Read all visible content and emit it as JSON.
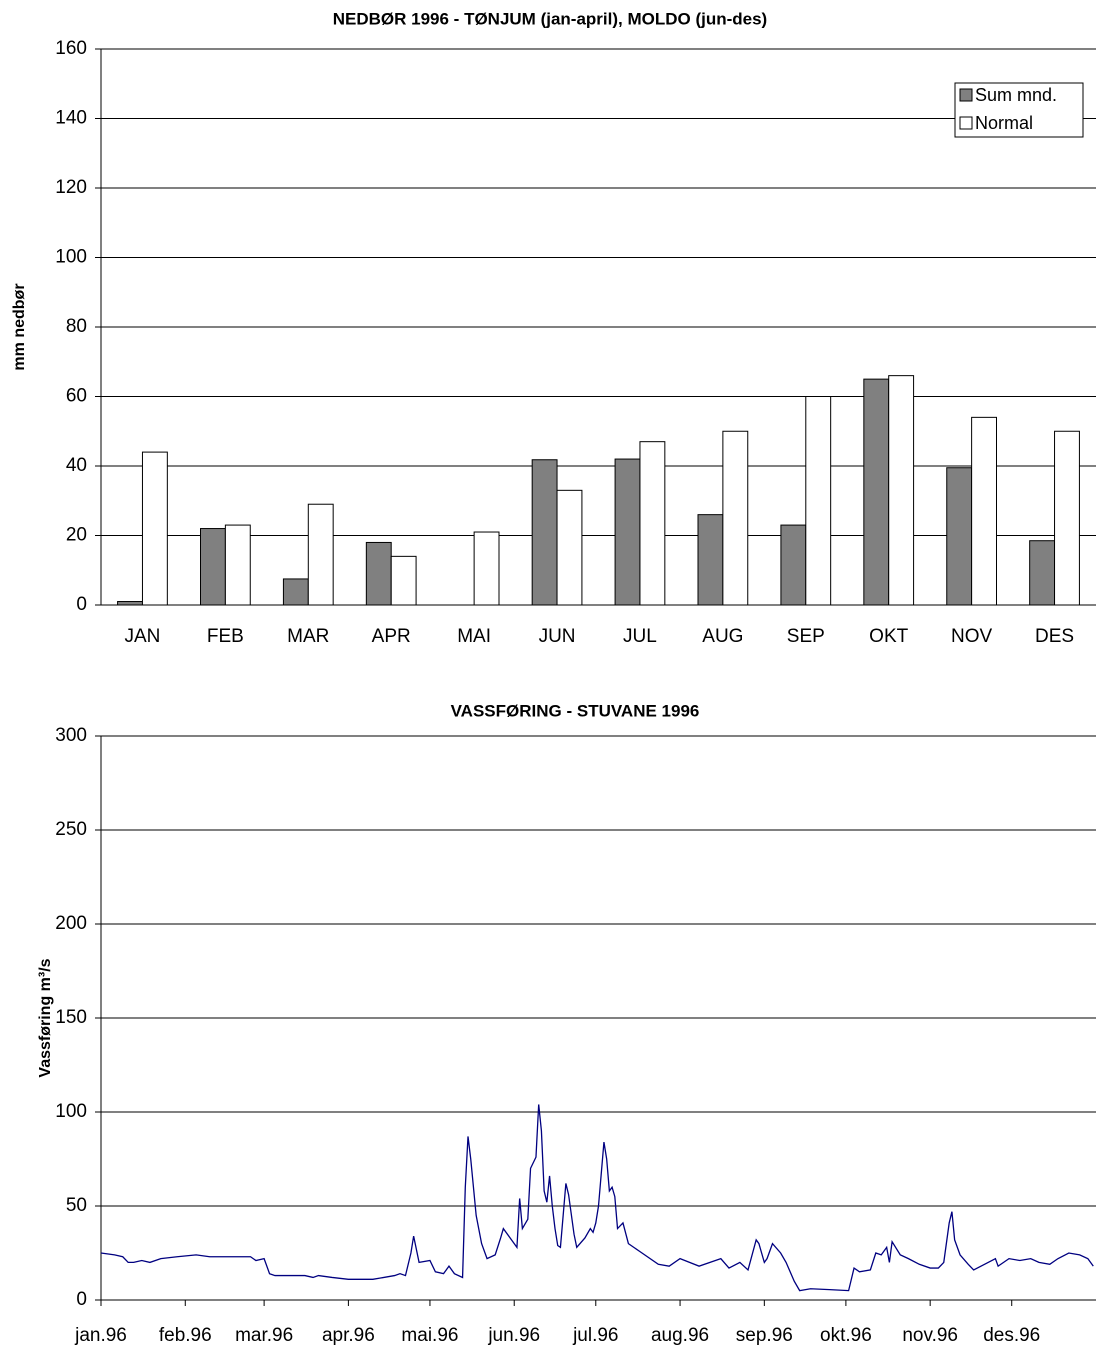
{
  "chart_data": [
    {
      "type": "bar",
      "title": "NEDBØR 1996 - TØNJUM (jan-april), MOLDO (jun-des)",
      "y_label": "mm nedbør",
      "categories": [
        "JAN",
        "FEB",
        "MAR",
        "APR",
        "MAI",
        "JUN",
        "JUL",
        "AUG",
        "SEP",
        "OKT",
        "NOV",
        "DES"
      ],
      "series": [
        {
          "name": "Sum mnd.",
          "color": "#808080",
          "values": [
            1,
            22,
            7.5,
            18,
            0,
            41.8,
            42,
            26,
            23,
            65,
            39.5,
            18.5
          ]
        },
        {
          "name": "Normal",
          "color": "#ffffff",
          "values": [
            44,
            23,
            29,
            14,
            21,
            33,
            47,
            50,
            60,
            66,
            54,
            50
          ]
        }
      ],
      "ylim": [
        0,
        160
      ],
      "yticks": [
        0,
        20,
        40,
        60,
        80,
        100,
        120,
        140,
        160
      ],
      "grid": true,
      "legend": "upper right"
    },
    {
      "type": "line",
      "title": "VASSFØRING - STUVANE 1996",
      "y_label": "Vassføring m³/s",
      "x": [
        0,
        5,
        8,
        10,
        12,
        15,
        18,
        22,
        28,
        35,
        40,
        50,
        55,
        57,
        60,
        62,
        64,
        70,
        75,
        78,
        80,
        85,
        91,
        100,
        108,
        110,
        112,
        114,
        115,
        117,
        121,
        123,
        126,
        128,
        130,
        133,
        134,
        135,
        136,
        138,
        140,
        142,
        145,
        147,
        148,
        151,
        153,
        154,
        155,
        157,
        158,
        160,
        161,
        162,
        163,
        164,
        165,
        166,
        167,
        168,
        169,
        170,
        171,
        172,
        174,
        175,
        178,
        180,
        181,
        182,
        183,
        185,
        186,
        187,
        188,
        189,
        190,
        192,
        194,
        198,
        205,
        209,
        213,
        220,
        228,
        231,
        235,
        238,
        241,
        242,
        244,
        245,
        247,
        250,
        252,
        255,
        257,
        261,
        268,
        275,
        277,
        279,
        283,
        285,
        287,
        289,
        290,
        291,
        294,
        297,
        301,
        305,
        308,
        310,
        312,
        313,
        314,
        316,
        319,
        321,
        325,
        329,
        330,
        334,
        338,
        342,
        345,
        349,
        352,
        356,
        360,
        363,
        365
      ],
      "series": [
        {
          "name": "Vassføring",
          "color": "#000080",
          "values": [
            25,
            24,
            23,
            20,
            20,
            21,
            20,
            22,
            23,
            24,
            23,
            23,
            23,
            21,
            22,
            14,
            13,
            13,
            13,
            12,
            13,
            12,
            11,
            11,
            13,
            14,
            13,
            25,
            34,
            20,
            21,
            15,
            14,
            18,
            14,
            12,
            60,
            87,
            75,
            45,
            30,
            22,
            24,
            33,
            38,
            32,
            28,
            54,
            38,
            43,
            70,
            76,
            104,
            90,
            58,
            52,
            66,
            50,
            38,
            29,
            28,
            45,
            62,
            56,
            35,
            28,
            33,
            38,
            36,
            41,
            50,
            84,
            75,
            58,
            60,
            55,
            38,
            41,
            30,
            26,
            19,
            18,
            22,
            18,
            22,
            17,
            20,
            16,
            32,
            30,
            20,
            22,
            30,
            25,
            20,
            10,
            5,
            6,
            5.5,
            5,
            17,
            15,
            16,
            25,
            24,
            28,
            20,
            31,
            24,
            22,
            19,
            17,
            17,
            20,
            41,
            47,
            32,
            24,
            19,
            16,
            19,
            22,
            18,
            22,
            21,
            22,
            20,
            19,
            22,
            25,
            24,
            22,
            18
          ]
        }
      ],
      "xlim": [
        0,
        366
      ],
      "xticks": [
        {
          "value": 0,
          "label": "jan.96"
        },
        {
          "value": 31,
          "label": "feb.96"
        },
        {
          "value": 60,
          "label": "mar.96"
        },
        {
          "value": 91,
          "label": "apr.96"
        },
        {
          "value": 121,
          "label": "mai.96"
        },
        {
          "value": 152,
          "label": "jun.96"
        },
        {
          "value": 182,
          "label": "jul.96"
        },
        {
          "value": 213,
          "label": "aug.96"
        },
        {
          "value": 244,
          "label": "sep.96"
        },
        {
          "value": 274,
          "label": "okt.96"
        },
        {
          "value": 305,
          "label": "nov.96"
        },
        {
          "value": 335,
          "label": "des.96"
        }
      ],
      "ylim": [
        0,
        300
      ],
      "yticks": [
        0,
        50,
        100,
        150,
        200,
        250,
        300
      ],
      "grid": true
    }
  ]
}
